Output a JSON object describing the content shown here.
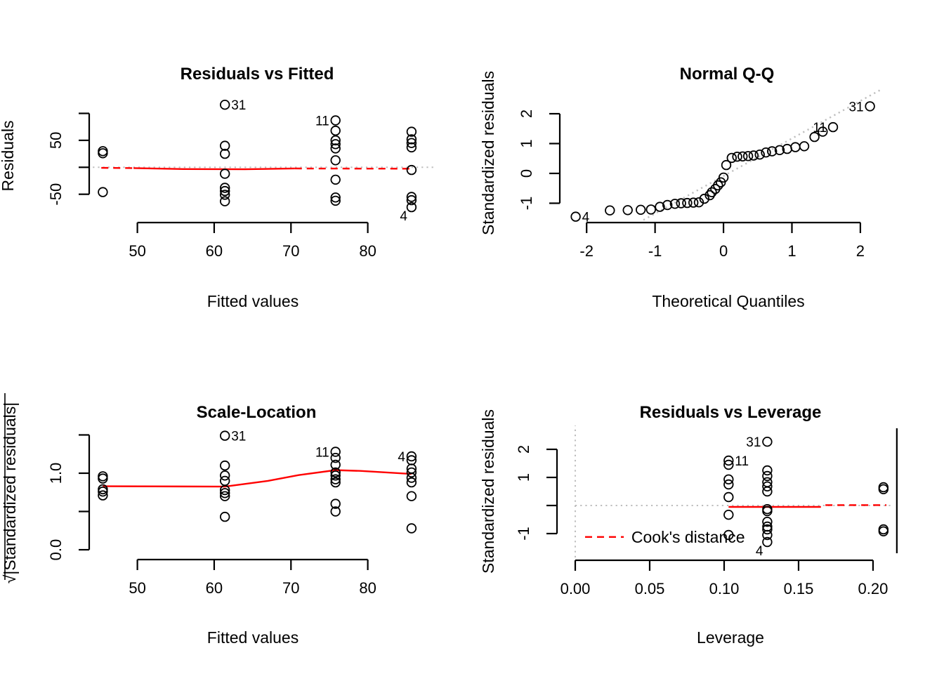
{
  "figure": {
    "background": "#ffffff",
    "description": "R lm() regression diagnostic plots, 2x2 grid"
  },
  "colors": {
    "foreground": "#000000",
    "smoother_red": "#ff0000",
    "reference_gray": "#bebebe"
  },
  "chart_data": [
    {
      "id": "residuals-vs-fitted",
      "type": "scatter",
      "title": "Residuals vs Fitted",
      "xlabel": "Fitted values",
      "ylabel": "Residuals",
      "xlim": [
        44,
        89
      ],
      "ylim": [
        -96,
        128
      ],
      "xticks": {
        "values": [
          50,
          60,
          70,
          80
        ],
        "labels": [
          "50",
          "60",
          "70",
          "80"
        ]
      },
      "yticks": {
        "values": [
          -50,
          0,
          50,
          100
        ],
        "labels": [
          "-50",
          "",
          "50",
          ""
        ]
      },
      "grid": false,
      "points": [
        [
          45.5,
          30
        ],
        [
          45.5,
          26
        ],
        [
          45.5,
          -46
        ],
        [
          61.4,
          40
        ],
        [
          61.4,
          25
        ],
        [
          61.4,
          -12
        ],
        [
          61.4,
          -38
        ],
        [
          61.4,
          -44
        ],
        [
          61.4,
          -51
        ],
        [
          61.4,
          -63
        ],
        [
          75.8,
          68
        ],
        [
          75.8,
          50
        ],
        [
          75.8,
          43
        ],
        [
          75.8,
          35
        ],
        [
          75.8,
          13
        ],
        [
          75.8,
          -23
        ],
        [
          75.8,
          -56
        ],
        [
          75.8,
          -62
        ],
        [
          85.7,
          66
        ],
        [
          85.7,
          52
        ],
        [
          85.7,
          45
        ],
        [
          85.7,
          37
        ],
        [
          85.7,
          -5
        ],
        [
          85.7,
          -55
        ],
        [
          85.7,
          -61
        ]
      ],
      "labeled_points": [
        {
          "label": "31",
          "x": 61.4,
          "y": 116,
          "side": "right"
        },
        {
          "label": "11",
          "x": 75.8,
          "y": 87,
          "side": "left"
        },
        {
          "label": "4",
          "x": 85.7,
          "y": -74,
          "side": "left-down"
        }
      ],
      "ref_lines": [
        {
          "orient": "h",
          "at": 0,
          "from": 44.2,
          "to": 88.8,
          "style": "dotted",
          "color": "#bebebe"
        }
      ],
      "smoother": [
        {
          "style": "dashed",
          "color": "#ff0000",
          "points": [
            [
              45.3,
              -1.0
            ],
            [
              49.5,
              -1.5
            ]
          ]
        },
        {
          "style": "solid",
          "color": "#ff0000",
          "points": [
            [
              49.5,
              -1.5
            ],
            [
              56,
              -3.3
            ],
            [
              64,
              -3.6
            ],
            [
              70.5,
              -2.2
            ]
          ]
        },
        {
          "style": "dashed",
          "color": "#ff0000",
          "points": [
            [
              70.5,
              -2.2
            ],
            [
              85.8,
              -2.6
            ]
          ]
        }
      ]
    },
    {
      "id": "normal-qq",
      "type": "scatter",
      "title": "Normal Q-Q",
      "xlabel": "Theoretical Quantiles",
      "ylabel": "Standardized residuals",
      "xlim": [
        -2.31,
        2.36
      ],
      "ylim": [
        -1.53,
        2.8
      ],
      "xticks": {
        "values": [
          -2,
          -1,
          0,
          1,
          2
        ],
        "labels": [
          "-2",
          "-1",
          "0",
          "1",
          "2"
        ]
      },
      "yticks": {
        "values": [
          -1,
          0,
          1,
          2
        ],
        "labels": [
          "-1",
          "0",
          "1",
          "2"
        ]
      },
      "grid": false,
      "points": [
        [
          -1.66,
          -1.24
        ],
        [
          -1.4,
          -1.23
        ],
        [
          -1.21,
          -1.22
        ],
        [
          -1.06,
          -1.21
        ],
        [
          -0.93,
          -1.12
        ],
        [
          -0.82,
          -1.06
        ],
        [
          -0.71,
          -1.02
        ],
        [
          -0.62,
          -1.0
        ],
        [
          -0.53,
          -0.99
        ],
        [
          -0.44,
          -0.98
        ],
        [
          -0.36,
          -0.97
        ],
        [
          -0.28,
          -0.85
        ],
        [
          -0.2,
          -0.73
        ],
        [
          -0.17,
          -0.63
        ],
        [
          -0.12,
          -0.52
        ],
        [
          -0.08,
          -0.4
        ],
        [
          -0.04,
          -0.3
        ],
        [
          0.0,
          -0.14
        ],
        [
          0.04,
          0.28
        ],
        [
          0.12,
          0.52
        ],
        [
          0.2,
          0.56
        ],
        [
          0.28,
          0.57
        ],
        [
          0.36,
          0.58
        ],
        [
          0.44,
          0.6
        ],
        [
          0.53,
          0.63
        ],
        [
          0.62,
          0.7
        ],
        [
          0.71,
          0.74
        ],
        [
          0.82,
          0.78
        ],
        [
          0.93,
          0.82
        ],
        [
          1.05,
          0.88
        ],
        [
          1.18,
          0.91
        ],
        [
          1.33,
          1.22
        ],
        [
          1.45,
          1.4
        ]
      ],
      "labeled_points": [
        {
          "label": "4",
          "x": -2.16,
          "y": -1.45,
          "side": "right"
        },
        {
          "label": "11",
          "x": 1.6,
          "y": 1.55,
          "side": "left"
        },
        {
          "label": "31",
          "x": 2.14,
          "y": 2.25,
          "side": "left"
        }
      ],
      "guide_line": {
        "style": "dotted",
        "color": "#bebebe",
        "points": [
          [
            -1.17,
            -1.56
          ],
          [
            2.31,
            2.82
          ]
        ]
      }
    },
    {
      "id": "scale-location",
      "type": "scatter",
      "title": "Scale-Location",
      "xlabel": "Fitted values",
      "ylabel": "√|Standardized residuals|",
      "xlim": [
        44,
        89
      ],
      "ylim": [
        -0.064,
        1.587
      ],
      "xticks": {
        "values": [
          50,
          60,
          70,
          80
        ],
        "labels": [
          "50",
          "60",
          "70",
          "80"
        ]
      },
      "yticks": {
        "values": [
          0,
          0.5,
          1.0,
          1.5
        ],
        "labels": [
          "0.0",
          "",
          "1.0",
          ""
        ]
      },
      "grid": false,
      "points": [
        [
          45.5,
          0.96
        ],
        [
          45.5,
          0.93
        ],
        [
          45.5,
          0.79
        ],
        [
          45.5,
          0.76
        ],
        [
          45.5,
          0.71
        ],
        [
          61.4,
          1.1
        ],
        [
          61.4,
          0.97
        ],
        [
          61.4,
          0.9
        ],
        [
          61.4,
          0.78
        ],
        [
          61.4,
          0.74
        ],
        [
          61.4,
          0.7
        ],
        [
          61.4,
          0.43
        ],
        [
          75.8,
          1.2
        ],
        [
          75.8,
          1.11
        ],
        [
          75.8,
          1.01
        ],
        [
          75.8,
          0.97
        ],
        [
          75.8,
          0.92
        ],
        [
          75.8,
          0.88
        ],
        [
          75.8,
          0.6
        ],
        [
          75.8,
          0.5
        ],
        [
          85.7,
          1.17
        ],
        [
          85.7,
          1.06
        ],
        [
          85.7,
          1.01
        ],
        [
          85.7,
          0.94
        ],
        [
          85.7,
          0.88
        ],
        [
          85.7,
          0.7
        ],
        [
          85.7,
          0.28
        ]
      ],
      "labeled_points": [
        {
          "label": "31",
          "x": 61.4,
          "y": 1.49,
          "side": "right"
        },
        {
          "label": "11",
          "x": 75.8,
          "y": 1.28,
          "side": "left"
        },
        {
          "label": "4",
          "x": 85.7,
          "y": 1.22,
          "side": "left"
        }
      ],
      "smoother": [
        {
          "style": "solid",
          "color": "#ff0000",
          "points": [
            [
              45.5,
              0.83
            ],
            [
              61.4,
              0.825
            ],
            [
              67,
              0.9
            ],
            [
              71,
              0.975
            ],
            [
              75.8,
              1.04
            ],
            [
              79,
              1.03
            ],
            [
              85.7,
              0.99
            ]
          ]
        }
      ]
    },
    {
      "id": "residuals-vs-leverage",
      "type": "scatter",
      "title": "Residuals vs Leverage",
      "xlabel": "Leverage",
      "ylabel": "Standardized residuals",
      "xlim": [
        -0.0066,
        0.2222
      ],
      "ylim": [
        -1.875,
        2.875
      ],
      "xticks": {
        "values": [
          0,
          0.05,
          0.1,
          0.15,
          0.2
        ],
        "labels": [
          "0.00",
          "0.05",
          "0.10",
          "0.15",
          "0.20"
        ]
      },
      "yticks": {
        "values": [
          -1,
          0,
          1,
          2
        ],
        "labels": [
          "-1",
          "",
          "1",
          "2"
        ]
      },
      "grid": false,
      "points": [
        [
          0.103,
          1.45
        ],
        [
          0.103,
          0.93
        ],
        [
          0.103,
          0.75
        ],
        [
          0.103,
          0.3
        ],
        [
          0.103,
          -0.33
        ],
        [
          0.103,
          -1.05
        ],
        [
          0.129,
          1.25
        ],
        [
          0.129,
          1.05
        ],
        [
          0.129,
          0.83
        ],
        [
          0.129,
          0.68
        ],
        [
          0.129,
          0.5
        ],
        [
          0.129,
          -0.13
        ],
        [
          0.129,
          -0.2
        ],
        [
          0.129,
          -0.58
        ],
        [
          0.129,
          -0.75
        ],
        [
          0.129,
          -0.85
        ],
        [
          0.129,
          -1.05
        ],
        [
          0.207,
          0.65
        ],
        [
          0.207,
          0.58
        ],
        [
          0.207,
          -0.85
        ],
        [
          0.207,
          -0.92
        ]
      ],
      "labeled_points": [
        {
          "label": "31",
          "x": 0.129,
          "y": 2.27,
          "side": "left"
        },
        {
          "label": "11",
          "x": 0.103,
          "y": 1.6,
          "side": "right"
        },
        {
          "label": "4",
          "x": 0.129,
          "y": -1.3,
          "side": "left-down"
        }
      ],
      "ref_lines": [
        {
          "orient": "v",
          "at": 0.0,
          "from": -1.85,
          "to": 2.85,
          "style": "dotted",
          "color": "#bebebe"
        },
        {
          "orient": "h",
          "at": 0.0,
          "from": 0.0,
          "to": 0.2135,
          "style": "dotted",
          "color": "#bebebe"
        }
      ],
      "frame_lines": [
        {
          "orient": "v",
          "at": 0.216,
          "from": -1.7,
          "to": 2.75,
          "style": "solid",
          "color": "#000000"
        }
      ],
      "smoother": [
        {
          "style": "solid",
          "color": "#ff0000",
          "points": [
            [
              0.103,
              -0.05
            ],
            [
              0.165,
              -0.05
            ]
          ]
        },
        {
          "style": "dashed",
          "color": "#ff0000",
          "points": [
            [
              0.168,
              0.015
            ],
            [
              0.209,
              0.015
            ]
          ]
        }
      ],
      "legend": {
        "label": "Cook's distance",
        "line_x": [
          0.0066,
          0.0326
        ],
        "text_x": 0.0377,
        "y": -1.12,
        "line_style": "dashed",
        "line_color": "#ff0000"
      }
    }
  ]
}
